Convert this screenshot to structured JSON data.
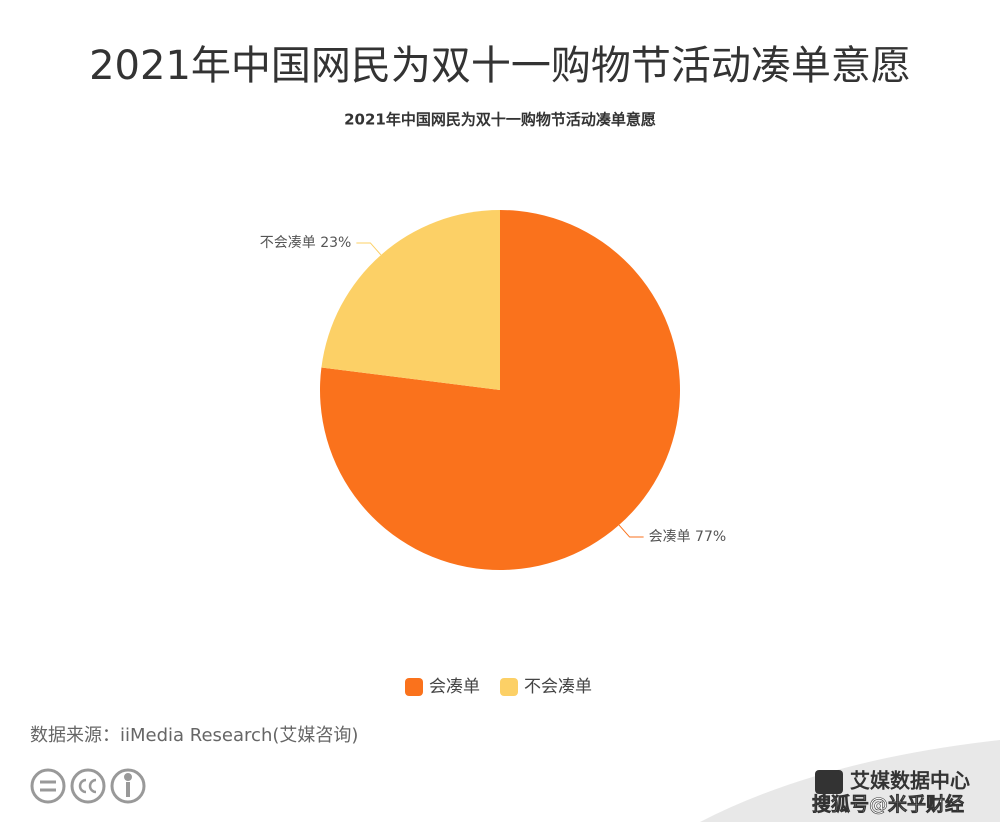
{
  "page_title": "2021年中国网民为双十一购物节活动凑单意愿",
  "chart_data": {
    "type": "pie",
    "title": "2021年中国网民为双十一购物节活动凑单意愿",
    "categories": [
      "会凑单",
      "不会凑单"
    ],
    "values": [
      77,
      23
    ],
    "value_labels": [
      "会凑单 77%",
      "不会凑单 23%"
    ],
    "colors": [
      "#fa721c",
      "#fcd066"
    ],
    "legend": "bottom"
  },
  "source": "数据来源：iiMedia Research(艾媒咨询)",
  "watermark": {
    "brand": "艾媒数据中心",
    "account": "搜狐号@米乎财经"
  }
}
